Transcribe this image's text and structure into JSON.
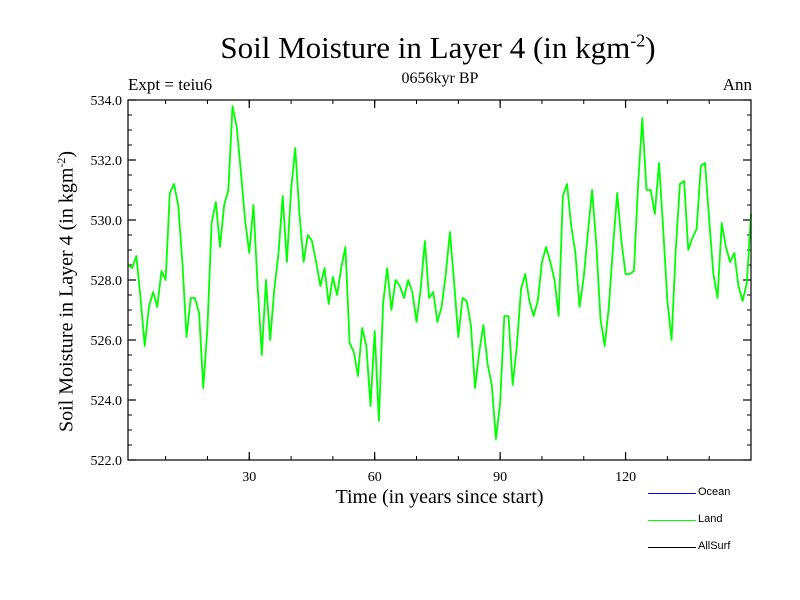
{
  "chart_data": {
    "type": "line",
    "title_main": "Soil Moisture in Layer 4 (in kgm",
    "title_exp": "-2",
    "title_close": ")",
    "subtitle": "0656kyr BP",
    "left_label": "Expt = teiu6",
    "right_label": "Ann",
    "xlabel": "Time (in years since start)",
    "ylabel_main": "Soil Moisture in Layer 4 (in kgm",
    "ylabel_exp": "-2",
    "ylabel_close": ")",
    "xlim": [
      1,
      150
    ],
    "ylim": [
      522.0,
      534.0
    ],
    "xticks": [
      30,
      60,
      90,
      120
    ],
    "yticks": [
      "522.0",
      "524.0",
      "526.0",
      "528.0",
      "530.0",
      "532.0",
      "534.0"
    ],
    "series": [
      {
        "name": "Land",
        "color": "#00ff00",
        "x": [
          1,
          2,
          3,
          4,
          5,
          6,
          7,
          8,
          9,
          10,
          11,
          12,
          13,
          14,
          15,
          16,
          17,
          18,
          19,
          20,
          21,
          22,
          23,
          24,
          25,
          26,
          27,
          28,
          29,
          30,
          31,
          32,
          33,
          34,
          35,
          36,
          37,
          38,
          39,
          40,
          41,
          42,
          43,
          44,
          45,
          46,
          47,
          48,
          49,
          50,
          51,
          52,
          53,
          54,
          55,
          56,
          57,
          58,
          59,
          60,
          61,
          62,
          63,
          64,
          65,
          66,
          67,
          68,
          69,
          70,
          71,
          72,
          73,
          74,
          75,
          76,
          77,
          78,
          79,
          80,
          81,
          82,
          83,
          84,
          85,
          86,
          87,
          88,
          89,
          90,
          91,
          92,
          93,
          94,
          95,
          96,
          97,
          98,
          99,
          100,
          101,
          102,
          103,
          104,
          105,
          106,
          107,
          108,
          109,
          110,
          111,
          112,
          113,
          114,
          115,
          116,
          117,
          118,
          119,
          120,
          121,
          122,
          123,
          124,
          125,
          126,
          127,
          128,
          129,
          130,
          131,
          132,
          133,
          134,
          135,
          136,
          137,
          138,
          139,
          140,
          141,
          142,
          143,
          144,
          145,
          146,
          147,
          148,
          149,
          150
        ],
        "values": [
          528.5,
          528.4,
          528.8,
          527.4,
          525.8,
          527.1,
          527.6,
          527.1,
          528.3,
          528.0,
          530.9,
          531.2,
          530.5,
          528.6,
          526.1,
          527.4,
          527.4,
          526.9,
          524.4,
          526.4,
          529.9,
          530.6,
          529.1,
          530.5,
          531.0,
          533.8,
          533.1,
          531.6,
          530.0,
          528.9,
          530.5,
          527.8,
          525.5,
          528.0,
          526.0,
          527.7,
          528.9,
          530.8,
          528.6,
          531.0,
          532.4,
          530.2,
          528.6,
          529.5,
          529.3,
          528.6,
          527.8,
          528.4,
          527.2,
          528.1,
          527.5,
          528.4,
          529.1,
          525.9,
          525.6,
          524.8,
          526.4,
          525.8,
          523.8,
          526.3,
          523.3,
          527.2,
          528.4,
          527.0,
          528.0,
          527.8,
          527.4,
          528.0,
          527.6,
          526.6,
          527.7,
          529.3,
          527.4,
          527.6,
          526.6,
          527.1,
          528.2,
          529.6,
          527.9,
          526.1,
          527.4,
          527.3,
          526.5,
          524.4,
          525.6,
          526.5,
          525.2,
          524.5,
          522.7,
          523.9,
          526.8,
          526.8,
          524.5,
          525.8,
          527.7,
          528.2,
          527.3,
          526.8,
          527.3,
          528.6,
          529.1,
          528.6,
          528.0,
          526.8,
          530.8,
          531.2,
          529.8,
          528.9,
          527.1,
          528.1,
          529.6,
          531.0,
          529.2,
          526.7,
          525.8,
          527.1,
          529.1,
          530.9,
          529.3,
          528.2,
          528.2,
          528.3,
          531.2,
          533.4,
          531.0,
          531.0,
          530.2,
          531.9,
          529.7,
          527.3,
          526.0,
          529.0,
          531.2,
          531.3,
          529.0,
          529.4,
          529.7,
          531.8,
          531.9,
          530.0,
          528.2,
          527.4,
          529.9,
          529.1,
          528.6,
          528.9,
          527.8,
          527.3,
          527.9,
          530.2
        ]
      }
    ],
    "legend": [
      {
        "name": "Ocean",
        "color": "#0000ff"
      },
      {
        "name": "Land",
        "color": "#00ff00"
      },
      {
        "name": "AllSurf",
        "color": "#000000"
      }
    ]
  }
}
